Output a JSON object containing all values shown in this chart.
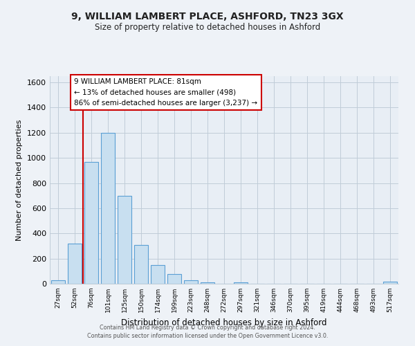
{
  "title1": "9, WILLIAM LAMBERT PLACE, ASHFORD, TN23 3GX",
  "title2": "Size of property relative to detached houses in Ashford",
  "xlabel": "Distribution of detached houses by size in Ashford",
  "ylabel": "Number of detached properties",
  "bar_labels": [
    "27sqm",
    "52sqm",
    "76sqm",
    "101sqm",
    "125sqm",
    "150sqm",
    "174sqm",
    "199sqm",
    "223sqm",
    "248sqm",
    "272sqm",
    "297sqm",
    "321sqm",
    "346sqm",
    "370sqm",
    "395sqm",
    "419sqm",
    "444sqm",
    "468sqm",
    "493sqm",
    "517sqm"
  ],
  "bar_heights": [
    30,
    320,
    970,
    1200,
    700,
    310,
    150,
    75,
    30,
    10,
    0,
    10,
    0,
    0,
    0,
    0,
    0,
    0,
    0,
    0,
    15
  ],
  "bar_color": "#c8dff0",
  "bar_edge_color": "#5a9fd4",
  "ylim": [
    0,
    1650
  ],
  "yticks": [
    0,
    200,
    400,
    600,
    800,
    1000,
    1200,
    1400,
    1600
  ],
  "property_line_x": 1.5,
  "property_line_color": "#cc0000",
  "annotation_text1": "9 WILLIAM LAMBERT PLACE: 81sqm",
  "annotation_text2": "← 13% of detached houses are smaller (498)",
  "annotation_text3": "86% of semi-detached houses are larger (3,237) →",
  "annotation_box_color": "#ffffff",
  "annotation_box_edge": "#cc0000",
  "footer1": "Contains HM Land Registry data © Crown copyright and database right 2024.",
  "footer2": "Contains public sector information licensed under the Open Government Licence v3.0.",
  "background_color": "#eef2f7",
  "plot_bg_color": "#e8eef5",
  "grid_color": "#c0ccd8"
}
